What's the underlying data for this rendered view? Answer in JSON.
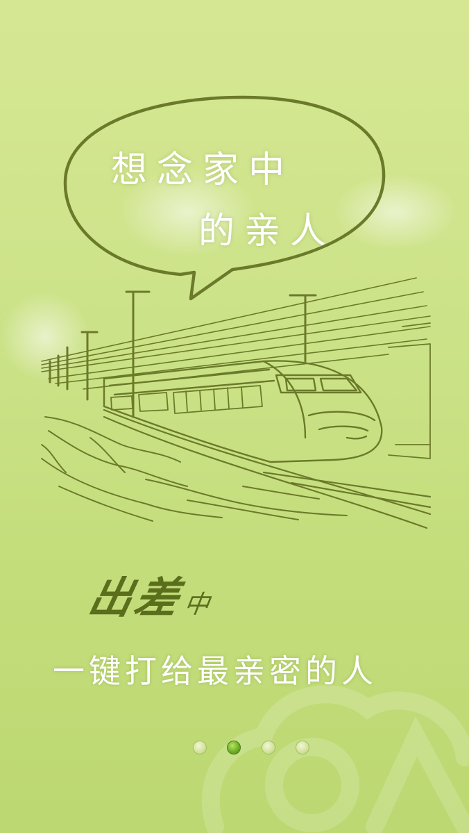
{
  "speech_bubble": {
    "line1": "想念家中",
    "line2": "的亲人"
  },
  "signature": {
    "main": "出差",
    "suffix": "中"
  },
  "tagline": "一键打给最亲密的人",
  "pager": {
    "total": 4,
    "active_index": 1
  },
  "colors": {
    "background": "#cde38a",
    "sketch": "#6b7a2a",
    "signature": "#5a6e1c",
    "active_dot": "#6fb122"
  },
  "icons": {
    "illustration": "train-sketch",
    "watermark": "cloud-logo-watermark"
  }
}
